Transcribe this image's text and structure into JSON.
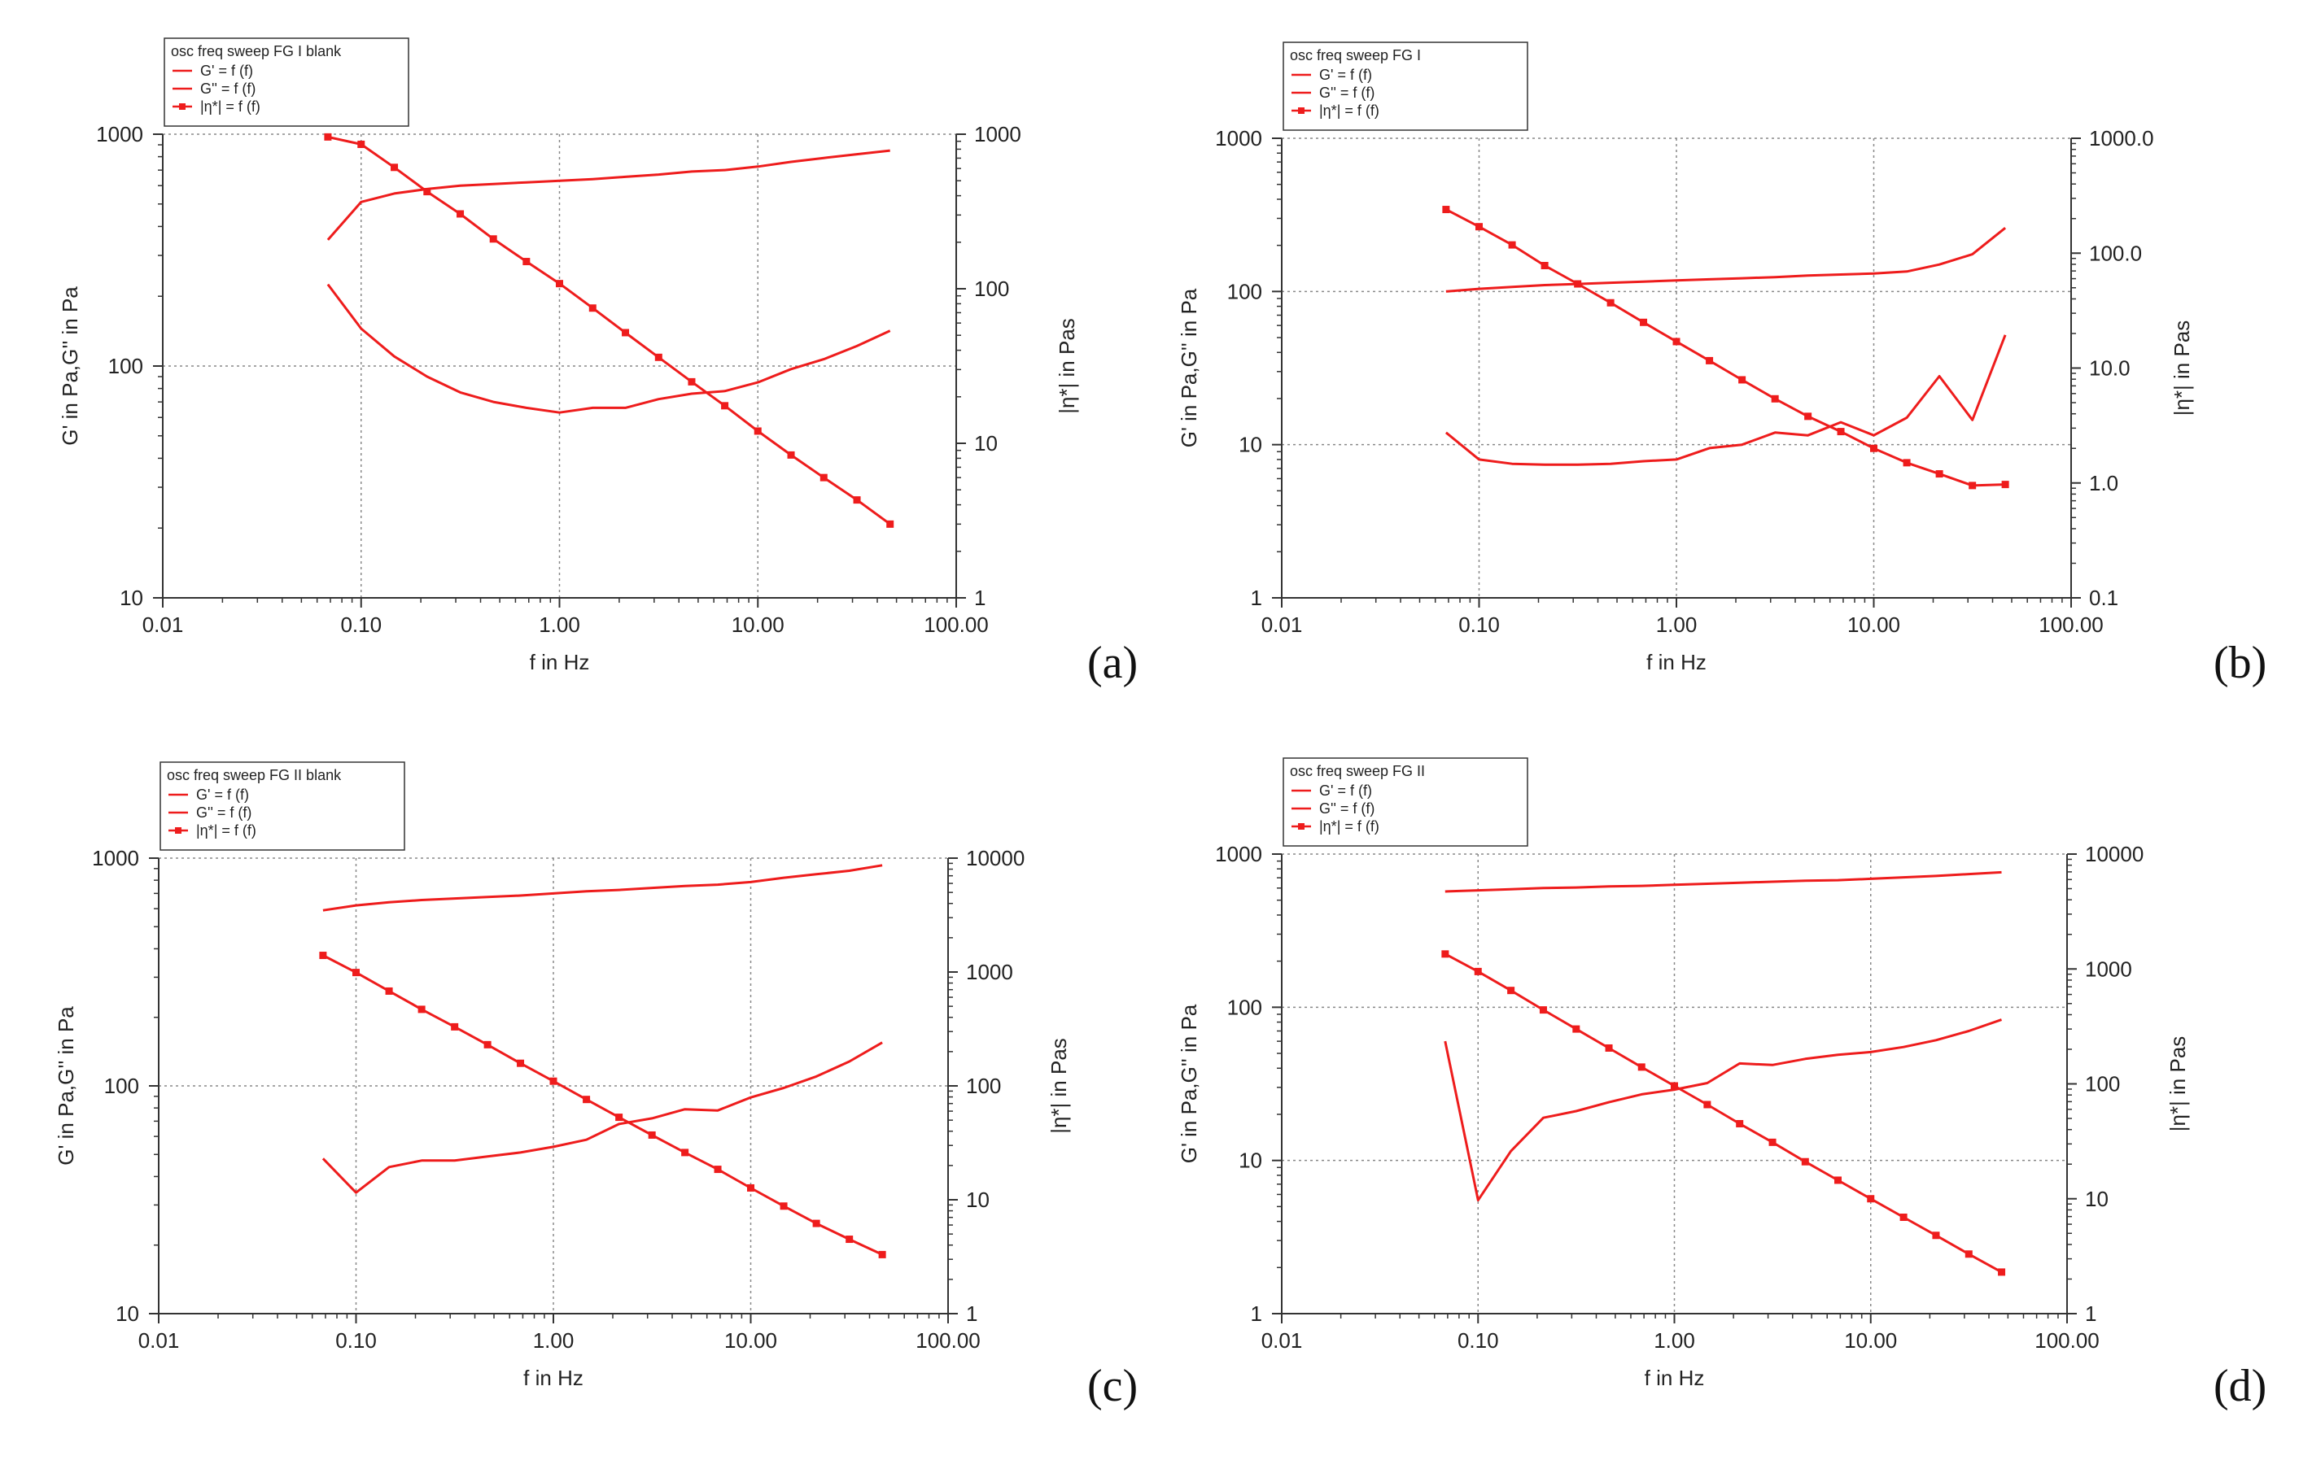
{
  "figure": {
    "panel_letters": [
      "(a)",
      "(b)",
      "(c)",
      "(d)"
    ]
  },
  "chart_data": [
    {
      "type": "line",
      "panel": "(a)",
      "legend": {
        "title": "osc freq sweep FG I blank",
        "entries": [
          "G' = f (f)",
          "G'' = f (f)",
          "|η*| = f (f)"
        ]
      },
      "xlabel": "f in Hz",
      "ylabel": "G' in Pa,G'' in Pa",
      "y2label": "|η*| in Pas",
      "xscale": "log",
      "yscale": "log",
      "y2scale": "log",
      "xlim": [
        0.01,
        100
      ],
      "ylim": [
        10,
        1000
      ],
      "y2lim": [
        1,
        1000
      ],
      "x_tick_labels": [
        "0.01",
        "0.10",
        "1.00",
        "10.00",
        "100.00"
      ],
      "y_tick_labels": [
        "10",
        "100",
        "1000"
      ],
      "y2_tick_labels": [
        "1",
        "10",
        "100",
        "1000"
      ],
      "color": "#ee1c1c",
      "series": [
        {
          "name": "G' = f (f)",
          "axis": "left",
          "markers": false,
          "x": [
            0.068,
            0.1,
            0.147,
            0.215,
            0.316,
            0.464,
            0.681,
            1.0,
            1.47,
            2.15,
            3.16,
            4.64,
            6.81,
            10.0,
            14.7,
            21.5,
            31.6,
            46.4
          ],
          "y": [
            350,
            510,
            555,
            580,
            600,
            610,
            620,
            630,
            640,
            655,
            670,
            690,
            700,
            725,
            760,
            790,
            820,
            850
          ]
        },
        {
          "name": "G'' = f (f)",
          "axis": "left",
          "markers": false,
          "x": [
            0.068,
            0.1,
            0.147,
            0.215,
            0.316,
            0.464,
            0.681,
            1.0,
            1.47,
            2.15,
            3.16,
            4.64,
            6.81,
            10.0,
            14.7,
            21.5,
            31.6,
            46.4
          ],
          "y": [
            225,
            145,
            110,
            90,
            77,
            70,
            66,
            63,
            66,
            66,
            72,
            76,
            78,
            85,
            97,
            107,
            122,
            142
          ]
        },
        {
          "name": "|η*| = f (f)",
          "axis": "right",
          "markers": true,
          "x": [
            0.068,
            0.1,
            0.147,
            0.215,
            0.316,
            0.464,
            0.681,
            1.0,
            1.47,
            2.15,
            3.16,
            4.64,
            6.81,
            10.0,
            14.7,
            21.5,
            31.6,
            46.4
          ],
          "y": [
            960,
            860,
            610,
            425,
            305,
            210,
            150,
            108,
            75,
            52,
            36,
            25,
            17.5,
            12.0,
            8.4,
            6.0,
            4.3,
            3.0
          ]
        }
      ]
    },
    {
      "type": "line",
      "panel": "(b)",
      "legend": {
        "title": "osc freq sweep FG I",
        "entries": [
          "G' = f (f)",
          "G'' = f (f)",
          "|η*| = f (f)"
        ]
      },
      "xlabel": "f in Hz",
      "ylabel": "G' in Pa,G'' in Pa",
      "y2label": "|η*| in Pas",
      "xscale": "log",
      "yscale": "log",
      "y2scale": "log",
      "xlim": [
        0.01,
        100
      ],
      "ylim": [
        1,
        1000
      ],
      "y2lim": [
        0.1,
        1000
      ],
      "x_tick_labels": [
        "0.01",
        "0.10",
        "1.00",
        "10.00",
        "100.00"
      ],
      "y_tick_labels": [
        "1",
        "10",
        "100",
        "1000"
      ],
      "y2_tick_labels": [
        "0.1",
        "1.0",
        "10.0",
        "100.0",
        "1000.0"
      ],
      "color": "#ee1c1c",
      "series": [
        {
          "name": "G' = f (f)",
          "axis": "left",
          "markers": false,
          "x": [
            0.068,
            0.1,
            0.147,
            0.215,
            0.316,
            0.464,
            0.681,
            1.0,
            1.47,
            2.15,
            3.16,
            4.64,
            6.81,
            10.0,
            14.7,
            21.5,
            31.6,
            46.4
          ],
          "y": [
            100,
            104,
            107,
            110,
            112,
            114,
            116,
            118,
            120,
            122,
            124,
            127,
            129,
            131,
            135,
            150,
            175,
            260
          ]
        },
        {
          "name": "G'' = f (f)",
          "axis": "left",
          "markers": false,
          "x": [
            0.068,
            0.1,
            0.147,
            0.215,
            0.316,
            0.464,
            0.681,
            1.0,
            1.47,
            2.15,
            3.16,
            4.64,
            6.81,
            10.0,
            14.7,
            21.5,
            31.6,
            46.4
          ],
          "y": [
            12,
            8,
            7.5,
            7.4,
            7.4,
            7.5,
            7.8,
            8,
            9.5,
            10,
            12,
            11.5,
            14,
            11.5,
            15,
            28,
            14.5,
            52
          ]
        },
        {
          "name": "|η*| = f (f)",
          "axis": "right",
          "markers": true,
          "x": [
            0.068,
            0.1,
            0.147,
            0.215,
            0.316,
            0.464,
            0.681,
            1.0,
            1.47,
            2.15,
            3.16,
            4.64,
            6.81,
            10.0,
            14.7,
            21.5,
            31.6,
            46.4
          ],
          "y": [
            240,
            170,
            118,
            78,
            54,
            37,
            25,
            17,
            11.6,
            7.9,
            5.4,
            3.8,
            2.8,
            2.0,
            1.5,
            1.2,
            0.95,
            0.97
          ]
        }
      ]
    },
    {
      "type": "line",
      "panel": "(c)",
      "legend": {
        "title": "osc freq sweep FG II blank",
        "entries": [
          "G' = f (f)",
          "G'' = f (f)",
          "|η*| = f (f)"
        ]
      },
      "xlabel": "f in Hz",
      "ylabel": "G' in Pa,G'' in Pa",
      "y2label": "|η*| in Pas",
      "xscale": "log",
      "yscale": "log",
      "y2scale": "log",
      "xlim": [
        0.01,
        100
      ],
      "ylim": [
        10,
        1000
      ],
      "y2lim": [
        1,
        10000
      ],
      "x_tick_labels": [
        "0.01",
        "0.10",
        "1.00",
        "10.00",
        "100.00"
      ],
      "y_tick_labels": [
        "10",
        "100",
        "1000"
      ],
      "y2_tick_labels": [
        "1",
        "10",
        "100",
        "1000",
        "10000"
      ],
      "color": "#ee1c1c",
      "series": [
        {
          "name": "G' = f (f)",
          "axis": "left",
          "markers": false,
          "x": [
            0.068,
            0.1,
            0.147,
            0.215,
            0.316,
            0.464,
            0.681,
            1.0,
            1.47,
            2.15,
            3.16,
            4.64,
            6.81,
            10.0,
            14.7,
            21.5,
            31.6,
            46.4
          ],
          "y": [
            590,
            620,
            640,
            655,
            665,
            675,
            685,
            700,
            715,
            725,
            740,
            755,
            765,
            785,
            820,
            850,
            880,
            930
          ]
        },
        {
          "name": "G'' = f (f)",
          "axis": "left",
          "markers": false,
          "x": [
            0.068,
            0.1,
            0.147,
            0.215,
            0.316,
            0.464,
            0.681,
            1.0,
            1.47,
            2.15,
            3.16,
            4.64,
            6.81,
            10.0,
            14.7,
            21.5,
            31.6,
            46.4
          ],
          "y": [
            48,
            34,
            44,
            47,
            47,
            49,
            51,
            54,
            58,
            68,
            72,
            79,
            78,
            89,
            98,
            110,
            128,
            155
          ]
        },
        {
          "name": "|η*| = f (f)",
          "axis": "right",
          "markers": true,
          "x": [
            0.068,
            0.1,
            0.147,
            0.215,
            0.316,
            0.464,
            0.681,
            1.0,
            1.47,
            2.15,
            3.16,
            4.64,
            6.81,
            10.0,
            14.7,
            21.5,
            31.6,
            46.4
          ],
          "y": [
            1400,
            990,
            680,
            470,
            330,
            230,
            158,
            110,
            76,
            53,
            37,
            26,
            18.5,
            12.7,
            8.8,
            6.2,
            4.5,
            3.3
          ]
        }
      ]
    },
    {
      "type": "line",
      "panel": "(d)",
      "legend": {
        "title": "osc freq sweep FG II",
        "entries": [
          "G' = f (f)",
          "G'' = f (f)",
          "|η*| = f (f)"
        ]
      },
      "xlabel": "f in Hz",
      "ylabel": "G' in Pa,G'' in Pa",
      "y2label": "|η*| in Pas",
      "xscale": "log",
      "yscale": "log",
      "y2scale": "log",
      "xlim": [
        0.01,
        100
      ],
      "ylim": [
        1,
        1000
      ],
      "y2lim": [
        1,
        10000
      ],
      "x_tick_labels": [
        "0.01",
        "0.10",
        "1.00",
        "10.00",
        "100.00"
      ],
      "y_tick_labels": [
        "1",
        "10",
        "100",
        "1000"
      ],
      "y2_tick_labels": [
        "1",
        "10",
        "100",
        "1000",
        "10000"
      ],
      "color": "#ee1c1c",
      "series": [
        {
          "name": "G' = f (f)",
          "axis": "left",
          "markers": false,
          "x": [
            0.068,
            0.1,
            0.147,
            0.215,
            0.316,
            0.464,
            0.681,
            1.0,
            1.47,
            2.15,
            3.16,
            4.64,
            6.81,
            10.0,
            14.7,
            21.5,
            31.6,
            46.4
          ],
          "y": [
            570,
            580,
            590,
            600,
            605,
            615,
            620,
            630,
            640,
            650,
            660,
            670,
            675,
            690,
            705,
            720,
            740,
            760
          ]
        },
        {
          "name": "G'' = f (f)",
          "axis": "left",
          "markers": false,
          "x": [
            0.068,
            0.1,
            0.147,
            0.215,
            0.316,
            0.464,
            0.681,
            1.0,
            1.47,
            2.15,
            3.16,
            4.64,
            6.81,
            10.0,
            14.7,
            21.5,
            31.6,
            46.4
          ],
          "y": [
            60,
            5.5,
            11.5,
            19,
            21,
            24,
            27,
            29,
            32,
            43,
            42,
            46,
            49,
            51,
            55,
            61,
            70,
            83
          ]
        },
        {
          "name": "|η*| = f (f)",
          "axis": "right",
          "markers": true,
          "x": [
            0.068,
            0.1,
            0.147,
            0.215,
            0.316,
            0.464,
            0.681,
            1.0,
            1.47,
            2.15,
            3.16,
            4.64,
            6.81,
            10.0,
            14.7,
            21.5,
            31.6,
            46.4
          ],
          "y": [
            1350,
            950,
            650,
            440,
            300,
            205,
            140,
            96,
            66,
            45,
            31,
            21,
            14.5,
            10,
            6.9,
            4.8,
            3.3,
            2.3
          ]
        }
      ]
    }
  ]
}
